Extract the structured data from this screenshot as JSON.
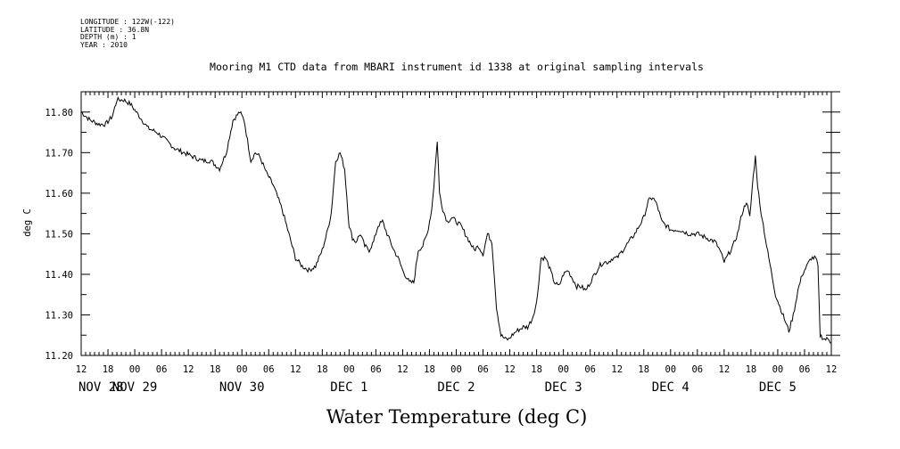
{
  "header": {
    "longitude": "LONGITUDE : 122W(-122)",
    "latitude": "LATITUDE : 36.8N",
    "depth": "DEPTH (m) : 1",
    "year": "YEAR : 2010"
  },
  "chart_data": {
    "type": "line",
    "title": "Mooring M1 CTD data from MBARI instrument id 1338 at original sampling intervals",
    "xlabel": "Water Temperature (deg C)",
    "ylabel": "deg C",
    "ylim": [
      11.2,
      11.85
    ],
    "yticks": [
      "11.20",
      "11.30",
      "11.40",
      "11.50",
      "11.60",
      "11.70",
      "11.80"
    ],
    "xlim_hours": [
      0,
      168
    ],
    "hour_ticks": [
      "12",
      "18",
      "00",
      "06",
      "12",
      "18",
      "00",
      "06",
      "12",
      "18",
      "00",
      "06",
      "12",
      "18",
      "00",
      "06",
      "12",
      "18",
      "00",
      "06",
      "12",
      "18",
      "00",
      "06",
      "12",
      "18",
      "00",
      "06",
      "12"
    ],
    "date_labels": [
      "NOV 28",
      "NOV 29",
      "NOV 30",
      "DEC  1",
      "DEC  2",
      "DEC  3",
      "DEC  4",
      "DEC  5"
    ],
    "series": [
      {
        "x": [
          "2010-11-28T12:00",
          "2010-11-28T14:00",
          "2010-11-28T16:00",
          "2010-11-28T17:30",
          "2010-11-28T19:00",
          "2010-11-28T20:00",
          "2010-11-28T21:30",
          "2010-11-28T23:00",
          "2010-11-29T01:00",
          "2010-11-29T03:00",
          "2010-11-29T05:00",
          "2010-11-29T07:00",
          "2010-11-29T09:00",
          "2010-11-29T11:00",
          "2010-11-29T13:00",
          "2010-11-29T15:00",
          "2010-11-29T17:00",
          "2010-11-29T19:00",
          "2010-11-29T20:30",
          "2010-11-29T22:00",
          "2010-11-29T23:30",
          "2010-11-30T00:30",
          "2010-11-30T02:00",
          "2010-11-30T03:00",
          "2010-11-30T04:00",
          "2010-11-30T05:30",
          "2010-11-30T07:00",
          "2010-11-30T08:00",
          "2010-11-30T09:00",
          "2010-11-30T10:30",
          "2010-11-30T12:00",
          "2010-11-30T13:30",
          "2010-11-30T15:00",
          "2010-11-30T16:30",
          "2010-11-30T18:00",
          "2010-11-30T19:00",
          "2010-11-30T20:00",
          "2010-11-30T21:00",
          "2010-11-30T22:00",
          "2010-11-30T23:00",
          "2010-12-01T00:00",
          "2010-12-01T00:45",
          "2010-12-01T01:30",
          "2010-12-01T02:30",
          "2010-12-01T03:30",
          "2010-12-01T04:30",
          "2010-12-01T05:30",
          "2010-12-01T06:30",
          "2010-12-01T07:30",
          "2010-12-01T08:30",
          "2010-12-01T10:00",
          "2010-12-01T11:00",
          "2010-12-01T12:00",
          "2010-12-01T13:30",
          "2010-12-01T14:30",
          "2010-12-01T15:30",
          "2010-12-01T16:30",
          "2010-12-01T17:30",
          "2010-12-01T18:30",
          "2010-12-01T19:00",
          "2010-12-01T19:45",
          "2010-12-01T20:15",
          "2010-12-01T21:00",
          "2010-12-01T22:00",
          "2010-12-01T23:00",
          "2010-12-02T00:00",
          "2010-12-02T01:00",
          "2010-12-02T02:00",
          "2010-12-02T03:00",
          "2010-12-02T04:00",
          "2010-12-02T05:00",
          "2010-12-02T06:00",
          "2010-12-02T07:00",
          "2010-12-02T08:00",
          "2010-12-02T09:00",
          "2010-12-02T10:00",
          "2010-12-02T11:00",
          "2010-12-02T11:45",
          "2010-12-02T12:30",
          "2010-12-02T13:30",
          "2010-12-02T15:00",
          "2010-12-02T16:00",
          "2010-12-02T17:00",
          "2010-12-02T18:00",
          "2010-12-02T19:00",
          "2010-12-02T20:00",
          "2010-12-02T20:45",
          "2010-12-02T22:00",
          "2010-12-02T23:00",
          "2010-12-03T00:00",
          "2010-12-03T01:00",
          "2010-12-03T02:00",
          "2010-12-03T03:00",
          "2010-12-03T04:00",
          "2010-12-03T05:00",
          "2010-12-03T06:00",
          "2010-12-03T07:00",
          "2010-12-03T08:00",
          "2010-12-03T09:00",
          "2010-12-03T10:00",
          "2010-12-03T11:00",
          "2010-12-03T12:00",
          "2010-12-03T14:00",
          "2010-12-03T16:00",
          "2010-12-03T18:00",
          "2010-12-03T19:00",
          "2010-12-03T20:00",
          "2010-12-03T21:00",
          "2010-12-03T22:00",
          "2010-12-03T23:00",
          "2010-12-04T00:00",
          "2010-12-04T01:00",
          "2010-12-04T02:00",
          "2010-12-04T04:00",
          "2010-12-04T06:00",
          "2010-12-04T08:00",
          "2010-12-04T10:00",
          "2010-12-04T11:00",
          "2010-12-04T12:00",
          "2010-12-04T13:00",
          "2010-12-04T14:00",
          "2010-12-04T15:00",
          "2010-12-04T16:00",
          "2010-12-04T17:00",
          "2010-12-04T17:45",
          "2010-12-04T18:30",
          "2010-12-04T19:00",
          "2010-12-04T19:30",
          "2010-12-04T20:00",
          "2010-12-04T20:30",
          "2010-12-04T21:30",
          "2010-12-04T22:30",
          "2010-12-04T23:30",
          "2010-12-05T00:30",
          "2010-12-05T01:30",
          "2010-12-05T02:30",
          "2010-12-05T03:30",
          "2010-12-05T04:30",
          "2010-12-05T05:30",
          "2010-12-05T06:30",
          "2010-12-05T07:30",
          "2010-12-05T08:30",
          "2010-12-05T09:00",
          "2010-12-05T09:30",
          "2010-12-05T10:30",
          "2010-12-05T11:30",
          "2010-12-05T12:00"
        ],
        "y": [
          11.8,
          11.78,
          11.77,
          11.77,
          11.79,
          11.83,
          11.83,
          11.82,
          11.79,
          11.76,
          11.75,
          11.73,
          11.71,
          11.7,
          11.69,
          11.68,
          11.68,
          11.66,
          11.7,
          11.78,
          11.8,
          11.78,
          11.68,
          11.7,
          11.69,
          11.65,
          11.62,
          11.59,
          11.56,
          11.5,
          11.44,
          11.42,
          11.41,
          11.42,
          11.46,
          11.5,
          11.55,
          11.68,
          11.7,
          11.66,
          11.52,
          11.49,
          11.48,
          11.5,
          11.47,
          11.46,
          11.48,
          11.52,
          11.53,
          11.5,
          11.46,
          11.44,
          11.41,
          11.38,
          11.38,
          11.46,
          11.47,
          11.5,
          11.56,
          11.62,
          11.73,
          11.6,
          11.56,
          11.53,
          11.54,
          11.53,
          11.52,
          11.5,
          11.48,
          11.46,
          11.47,
          11.45,
          11.5,
          11.48,
          11.32,
          11.25,
          11.24,
          11.24,
          11.25,
          11.26,
          11.27,
          11.27,
          11.29,
          11.33,
          11.44,
          11.44,
          11.42,
          11.38,
          11.37,
          11.4,
          11.41,
          11.39,
          11.37,
          11.37,
          11.36,
          11.38,
          11.4,
          11.42,
          11.43,
          11.43,
          11.44,
          11.44,
          11.47,
          11.5,
          11.54,
          11.58,
          11.59,
          11.57,
          11.53,
          11.52,
          11.51,
          11.51,
          11.51,
          11.5,
          11.5,
          11.49,
          11.48,
          11.46,
          11.43,
          11.45,
          11.47,
          11.5,
          11.55,
          11.58,
          11.54,
          11.64,
          11.69,
          11.62,
          11.57,
          11.54,
          11.47,
          11.41,
          11.35,
          11.32,
          11.29,
          11.26,
          11.3,
          11.36,
          11.4,
          11.42,
          11.44,
          11.44,
          11.42,
          11.25,
          11.24,
          11.24,
          11.23
        ]
      }
    ]
  }
}
